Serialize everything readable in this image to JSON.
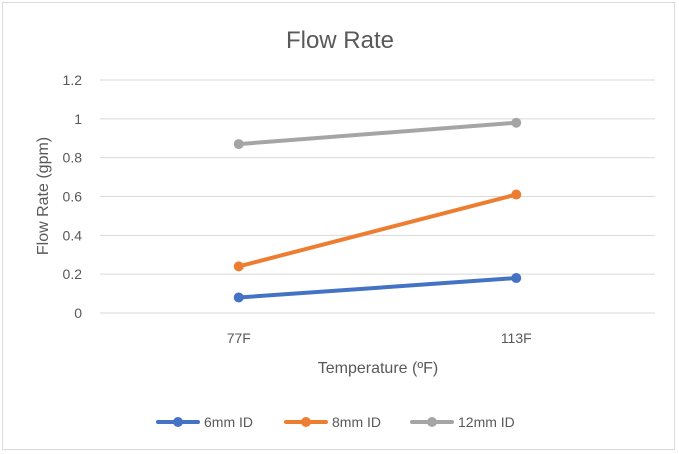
{
  "chart_data": {
    "type": "line",
    "title": "Flow Rate",
    "xlabel": "Temperature (ºF)",
    "ylabel": "Flow Rate (gpm)",
    "categories": [
      "77F",
      "113F"
    ],
    "ylim": [
      0,
      1.2
    ],
    "yticks": [
      "0",
      "0.2",
      "0.4",
      "0.6",
      "0.8",
      "1",
      "1.2"
    ],
    "ytick_values": [
      0,
      0.2,
      0.4,
      0.6,
      0.8,
      1.0,
      1.2
    ],
    "grid": true,
    "legend_position": "bottom",
    "series": [
      {
        "name": "6mm ID",
        "values": [
          0.08,
          0.18
        ],
        "color": "#4472c4"
      },
      {
        "name": "8mm ID",
        "values": [
          0.24,
          0.61
        ],
        "color": "#ed7d31"
      },
      {
        "name": "12mm ID",
        "values": [
          0.87,
          0.98
        ],
        "color": "#a5a5a5"
      }
    ]
  }
}
